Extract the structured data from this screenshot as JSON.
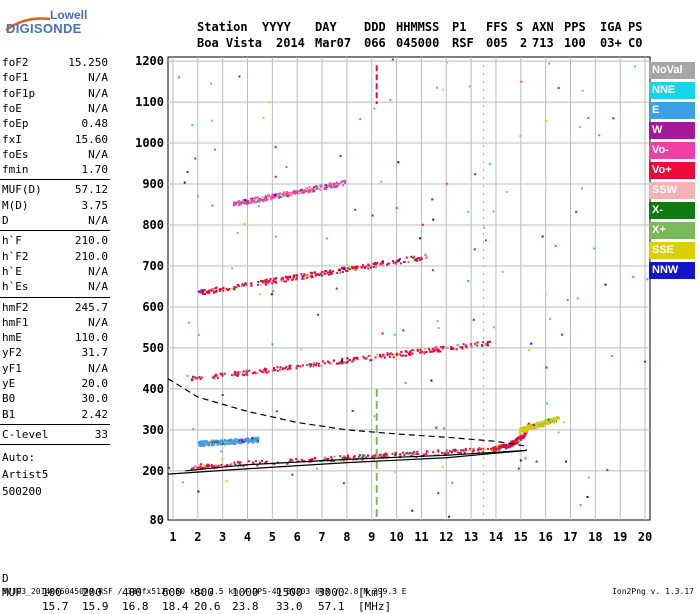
{
  "logo": {
    "line1": "Lowell",
    "line2": "DIGISONDE"
  },
  "header": {
    "columns": [
      {
        "label": "Station",
        "value": "Boa Vista"
      },
      {
        "label": "YYYY",
        "value": "2014"
      },
      {
        "label": "DAY",
        "value": "Mar07"
      },
      {
        "label": "DDD",
        "value": "066"
      },
      {
        "label": "HHMMSS",
        "value": "045000"
      },
      {
        "label": "P1",
        "value": "RSF"
      },
      {
        "label": "FFS",
        "value": "005"
      },
      {
        "label": "S",
        "value": "2"
      },
      {
        "label": "AXN",
        "value": "713"
      },
      {
        "label": "PPS",
        "value": "100"
      },
      {
        "label": "IGA",
        "value": "03+"
      },
      {
        "label": "PS",
        "value": "C0"
      }
    ]
  },
  "params": {
    "group1": [
      {
        "name": "foF2",
        "value": "15.250"
      },
      {
        "name": "foF1",
        "value": "N/A"
      },
      {
        "name": "foF1p",
        "value": "N/A"
      },
      {
        "name": "foE",
        "value": "N/A"
      },
      {
        "name": "foEp",
        "value": "0.48"
      },
      {
        "name": "fxI",
        "value": "15.60"
      },
      {
        "name": "foEs",
        "value": "N/A"
      },
      {
        "name": "fmin",
        "value": "1.70"
      }
    ],
    "group2": [
      {
        "name": "MUF(D)",
        "value": "57.12"
      },
      {
        "name": "M(D)",
        "value": "3.75"
      },
      {
        "name": "D",
        "value": "N/A"
      }
    ],
    "group3": [
      {
        "name": "h`F",
        "value": "210.0"
      },
      {
        "name": "h`F2",
        "value": "210.0"
      },
      {
        "name": "h`E",
        "value": "N/A"
      },
      {
        "name": "h`Es",
        "value": "N/A"
      }
    ],
    "group4": [
      {
        "name": "hmF2",
        "value": "245.7"
      },
      {
        "name": "hmF1",
        "value": "N/A"
      },
      {
        "name": "hmE",
        "value": "110.0"
      },
      {
        "name": "yF2",
        "value": "31.7"
      },
      {
        "name": "yF1",
        "value": "N/A"
      },
      {
        "name": "yE",
        "value": "20.0"
      },
      {
        "name": "B0",
        "value": "30.0"
      },
      {
        "name": "B1",
        "value": "2.42"
      }
    ],
    "clevel": {
      "name": "C-level",
      "value": "33"
    },
    "autoscale": [
      "Auto:",
      "Artist5",
      "500200"
    ]
  },
  "legend": [
    {
      "label": "NoVal",
      "color": "#a6a6a6"
    },
    {
      "label": "NNE",
      "color": "#16d6e6"
    },
    {
      "label": "E",
      "color": "#3aa0e8"
    },
    {
      "label": "W",
      "color": "#a4189c"
    },
    {
      "label": "Vo-",
      "color": "#f040a8"
    },
    {
      "label": "Vo+",
      "color": "#ec0a3a"
    },
    {
      "label": "SSW",
      "color": "#f6b2b2"
    },
    {
      "label": "X-",
      "color": "#0e7a10"
    },
    {
      "label": "X+",
      "color": "#7ab85a"
    },
    {
      "label": "SSE",
      "color": "#d8d000"
    },
    {
      "label": "NNW",
      "color": "#1414c8"
    }
  ],
  "footer": {
    "d_label": "D",
    "d_values": [
      "100",
      "200",
      "400",
      "600",
      "800",
      "1000",
      "1500",
      "3000"
    ],
    "d_unit": "[km]",
    "muf_label": "MUF",
    "muf_values": [
      "15.7",
      "15.9",
      "16.8",
      "18.4",
      "20.6",
      "23.8",
      "33.0",
      "57.1"
    ],
    "muf_unit": "[MHz]",
    "source": "BVJ03_2014066045000.RSF / 384fx512h 50 kHz 2.5 km / DPS-4D BVJ03 003 / 2.8 N 299.3 E",
    "version": "Ion2Png v. 1.3.17"
  },
  "chart_data": {
    "type": "scatter",
    "xlim": [
      0.8,
      20.2
    ],
    "ylim": [
      80,
      1210
    ],
    "x_ticks": [
      1,
      2,
      3,
      4,
      5,
      6,
      7,
      8,
      9,
      10,
      11,
      12,
      13,
      14,
      15,
      16,
      17,
      18,
      19,
      20
    ],
    "y_ticks": [
      80,
      200,
      300,
      400,
      500,
      600,
      700,
      800,
      900,
      1000,
      1100,
      1200
    ],
    "grid": true,
    "traces": [
      {
        "name": "O-trace 1st hop",
        "color": "#ec0a3a",
        "x": [
          1.7,
          14.0
        ],
        "y": [
          212,
          255
        ]
      },
      {
        "name": "O-trace 2nd hop",
        "color": "#ec0a3a",
        "x": [
          1.7,
          13.9
        ],
        "y": [
          426,
          515
        ]
      },
      {
        "name": "O-trace 3rd hop",
        "color": "#ec0a3a",
        "x": [
          2.0,
          11.2
        ],
        "y": [
          637,
          725
        ]
      },
      {
        "name": "O-trace 4th hop",
        "color": "#f040a8",
        "x": [
          3.4,
          7.9
        ],
        "y": [
          853,
          905
        ]
      },
      {
        "name": "Cusp",
        "color": "#ec0a3a",
        "x": [
          13.8,
          14.4,
          14.8,
          15.1,
          15.3
        ],
        "y": [
          255,
          262,
          275,
          290,
          315
        ]
      },
      {
        "name": "X-trace",
        "color": "#d8d000",
        "x": [
          14.9,
          16.5
        ],
        "y": [
          300,
          330
        ]
      },
      {
        "name": "E-trace",
        "color": "#3aa0e8",
        "x": [
          2.0,
          4.4
        ],
        "y": [
          268,
          278
        ]
      }
    ],
    "profile_solid": {
      "x": [
        0.8,
        4,
        8,
        12,
        14,
        15.25,
        12,
        8,
        4,
        1.5
      ],
      "y": [
        192,
        205,
        220,
        232,
        243,
        250,
        238,
        228,
        215,
        200
      ]
    },
    "profile_dashed": {
      "x": [
        0.8,
        2,
        4,
        6,
        8,
        10,
        12,
        14,
        15.25
      ],
      "y": [
        425,
        380,
        345,
        318,
        300,
        290,
        282,
        272,
        260
      ]
    }
  }
}
